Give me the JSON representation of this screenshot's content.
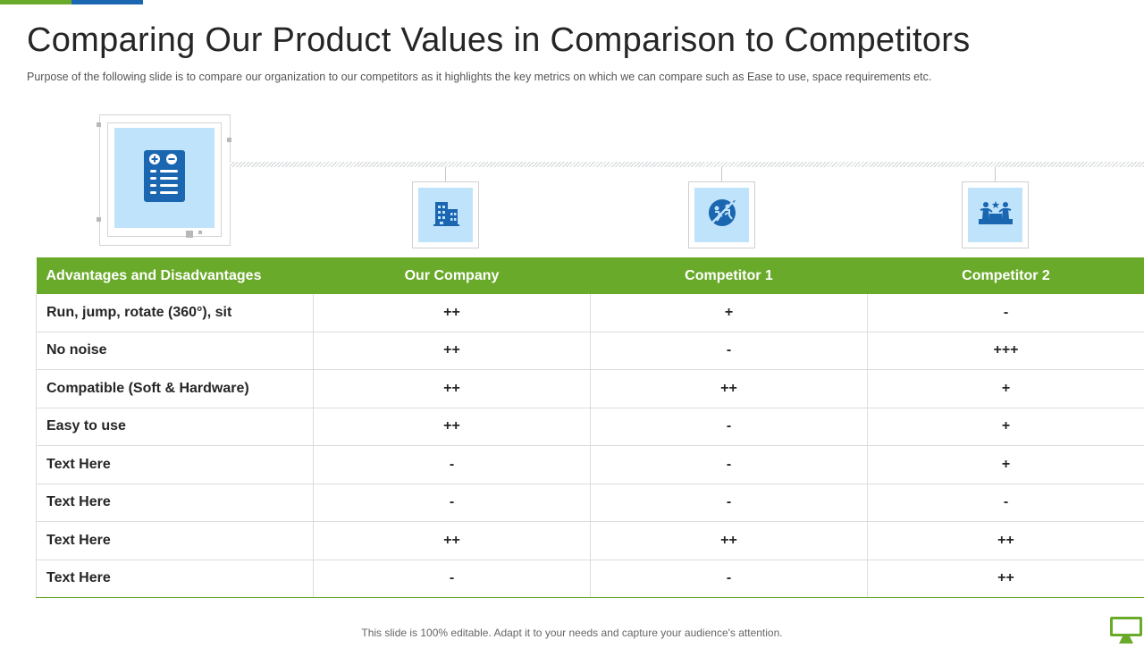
{
  "slide": {
    "title": "Comparing Our Product Values in Comparison to Competitors",
    "subtitle": "Purpose of the following  slide is to compare our organization  to our competitors  as it highlights  the key metrics on which we can compare  such as Ease to use,  space requirements  etc.",
    "footer": "This slide is 100% editable. Adapt it to your needs and capture your audience's attention."
  },
  "colors": {
    "accent_green": "#6aaa2a",
    "accent_blue": "#1a66b0",
    "icon_bg": "#bfe3fb",
    "icon_fg": "#1a66b0"
  },
  "icons": {
    "main": "calculator-icon",
    "col1": "building-icon",
    "col2": "running-figures-icon",
    "col3": "podium-competitors-icon",
    "footer": "monitor-icon"
  },
  "table": {
    "headers": [
      "Advantages and Disadvantages",
      "Our Company",
      "Competitor 1",
      "Competitor 2"
    ],
    "rows": [
      [
        "Run, jump, rotate (360°), sit",
        "++",
        "+",
        "-"
      ],
      [
        "No noise",
        "++",
        "-",
        "+++"
      ],
      [
        "Compatible (Soft & Hardware)",
        "++",
        "++",
        "+"
      ],
      [
        "Easy to use",
        "++",
        "-",
        "+"
      ],
      [
        "Text Here",
        "-",
        "-",
        "+"
      ],
      [
        "Text Here",
        "-",
        "-",
        "-"
      ],
      [
        "Text Here",
        "++",
        "++",
        "++"
      ],
      [
        "Text Here",
        "-",
        "-",
        "++"
      ]
    ]
  }
}
